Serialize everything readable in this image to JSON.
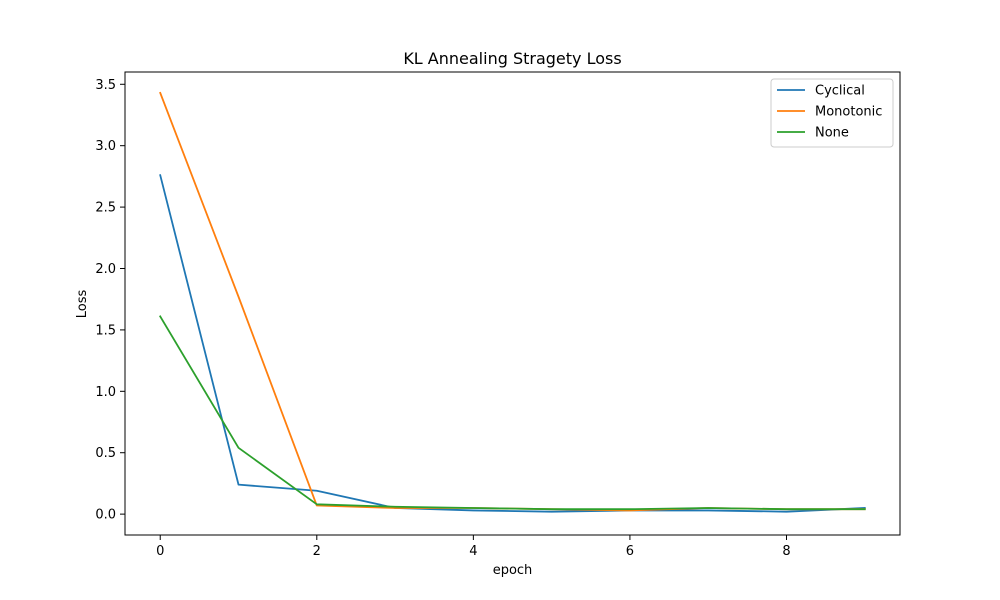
{
  "chart_data": {
    "type": "line",
    "title": "KL Annealing Stragety Loss",
    "xlabel": "epoch",
    "ylabel": "Loss",
    "x": [
      0,
      1,
      2,
      3,
      4,
      5,
      6,
      7,
      8,
      9
    ],
    "xlim": [
      -0.45,
      9.45
    ],
    "ylim": [
      -0.17,
      3.6
    ],
    "x_ticks": [
      0,
      2,
      4,
      6,
      8
    ],
    "x_tick_labels": [
      "0",
      "2",
      "4",
      "6",
      "8"
    ],
    "y_ticks": [
      0.0,
      0.5,
      1.0,
      1.5,
      2.0,
      2.5,
      3.0,
      3.5
    ],
    "y_tick_labels": [
      "0.0",
      "0.5",
      "1.0",
      "1.5",
      "2.0",
      "2.5",
      "3.0",
      "3.5"
    ],
    "grid": false,
    "legend_position": "top-right",
    "series": [
      {
        "name": "Cyclical",
        "color": "#1f77b4",
        "values": [
          2.76,
          0.24,
          0.19,
          0.05,
          0.03,
          0.02,
          0.03,
          0.03,
          0.02,
          0.05
        ]
      },
      {
        "name": "Monotonic",
        "color": "#ff7f0e",
        "values": [
          3.43,
          1.77,
          0.07,
          0.05,
          0.05,
          0.04,
          0.03,
          0.05,
          0.04,
          0.04
        ]
      },
      {
        "name": "None",
        "color": "#2ca02c",
        "values": [
          1.61,
          0.54,
          0.08,
          0.06,
          0.05,
          0.04,
          0.04,
          0.05,
          0.04,
          0.04
        ]
      }
    ]
  }
}
